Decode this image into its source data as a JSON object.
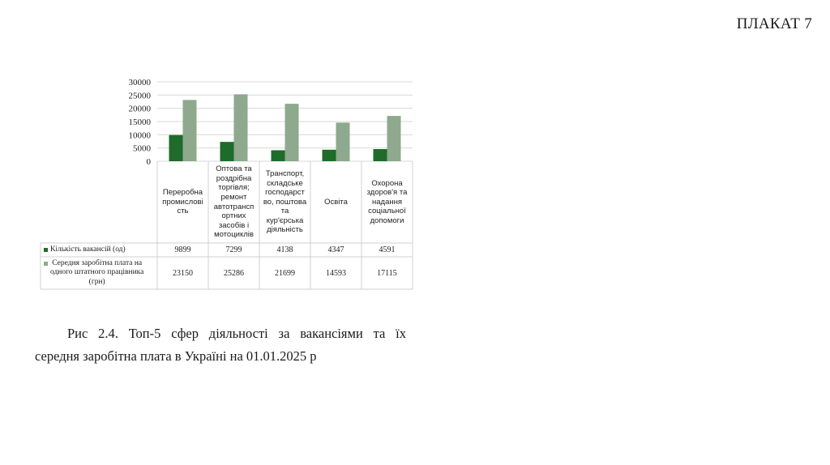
{
  "poster_label": "ПЛАКАТ 7",
  "caption": {
    "line1": "Рис 2.4. Топ-5 сфер діяльності за вакансіями та їх",
    "line2": "середня заробітна плата в Україні на 01.01.2025 р"
  },
  "chart_data": {
    "type": "bar",
    "categories": [
      "Переробна промисловість",
      "Оптова та роздрібна торгівля; ремонт автотранспортних засобів і мотоциклів",
      "Транспорт, складське господарство, поштова та кур'єрська діяльність",
      "Освіта",
      "Охорона здоров'я та надання соціальної допомоги"
    ],
    "category_lines": [
      [
        "Переробна",
        "промислові",
        "сть"
      ],
      [
        "Оптова та",
        "роздрібна",
        "торгівля;",
        "ремонт",
        "автотрансп",
        "ортних",
        "засобів і",
        "мотоциклів"
      ],
      [
        "Транспорт,",
        "складське",
        "господарст",
        "во, поштова",
        "та",
        "кур'єрська",
        "діяльність"
      ],
      [
        "Освіта"
      ],
      [
        "Охорона",
        "здоров'я та",
        "надання",
        "соціальної",
        "допомоги"
      ]
    ],
    "series": [
      {
        "name": "Кількість вакансій (од)",
        "name_lines": [
          "Кількість вакансій (од)"
        ],
        "color": "#1e6b2a",
        "values": [
          9899,
          7299,
          4138,
          4347,
          4591
        ]
      },
      {
        "name": "Середня заробітна плата на одного штатного працівника (грн)",
        "name_lines": [
          "Середня заробітна плата на",
          "одного штатного працівника",
          "(грн)"
        ],
        "color": "#8ea98d",
        "values": [
          23150,
          25286,
          21699,
          14593,
          17115
        ]
      }
    ],
    "yticks": [
      "0",
      "5000",
      "10000",
      "15000",
      "20000",
      "25000",
      "30000"
    ],
    "ylim": [
      0,
      30000
    ],
    "grid": true,
    "legend": "data-table"
  }
}
